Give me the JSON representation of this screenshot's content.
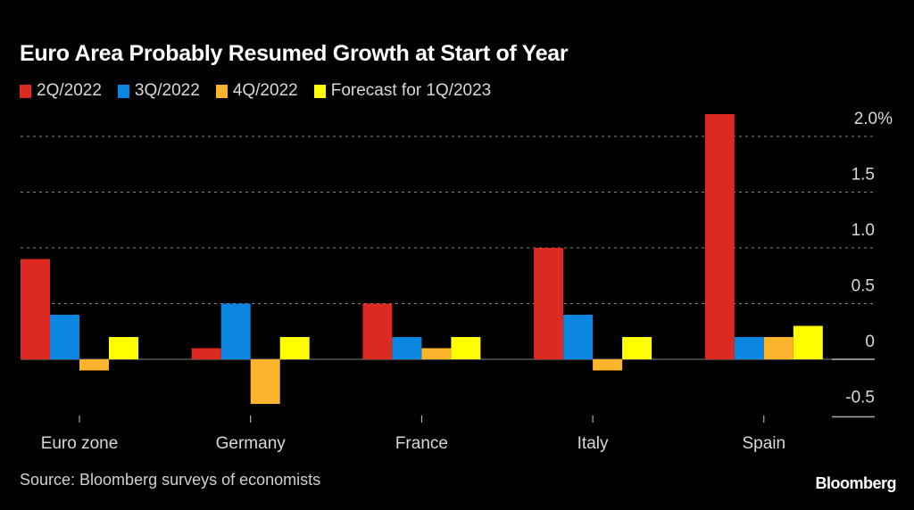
{
  "chart_data": {
    "type": "bar",
    "title": "Euro Area Probably Resumed Growth at Start of Year",
    "categories": [
      "Euro zone",
      "Germany",
      "France",
      "Italy",
      "Spain"
    ],
    "series": [
      {
        "name": "2Q/2022",
        "color": "#dc2a22",
        "values": [
          0.9,
          0.1,
          0.5,
          1.0,
          2.2
        ]
      },
      {
        "name": "3Q/2022",
        "color": "#0a85e0",
        "values": [
          0.4,
          0.5,
          0.2,
          0.4,
          0.2
        ]
      },
      {
        "name": "4Q/2022",
        "color": "#fbb42b",
        "values": [
          -0.1,
          -0.4,
          0.1,
          -0.1,
          0.2
        ]
      },
      {
        "name": "Forecast for 1Q/2023",
        "color": "#ffff00",
        "values": [
          0.2,
          0.2,
          0.2,
          0.2,
          0.3
        ]
      }
    ],
    "xlabel": "",
    "ylabel": "",
    "ylim": [
      -0.5,
      2.2
    ],
    "yticks": [
      {
        "value": 2.0,
        "label": "2.0%"
      },
      {
        "value": 1.5,
        "label": "1.5"
      },
      {
        "value": 1.0,
        "label": "1.0"
      },
      {
        "value": 0.5,
        "label": "0.5"
      },
      {
        "value": 0,
        "label": "0"
      },
      {
        "value": -0.5,
        "label": "-0.5"
      }
    ],
    "grid": true,
    "legend_position": "top-left",
    "source": "Source: Bloomberg surveys of economists",
    "brand": "Bloomberg"
  }
}
